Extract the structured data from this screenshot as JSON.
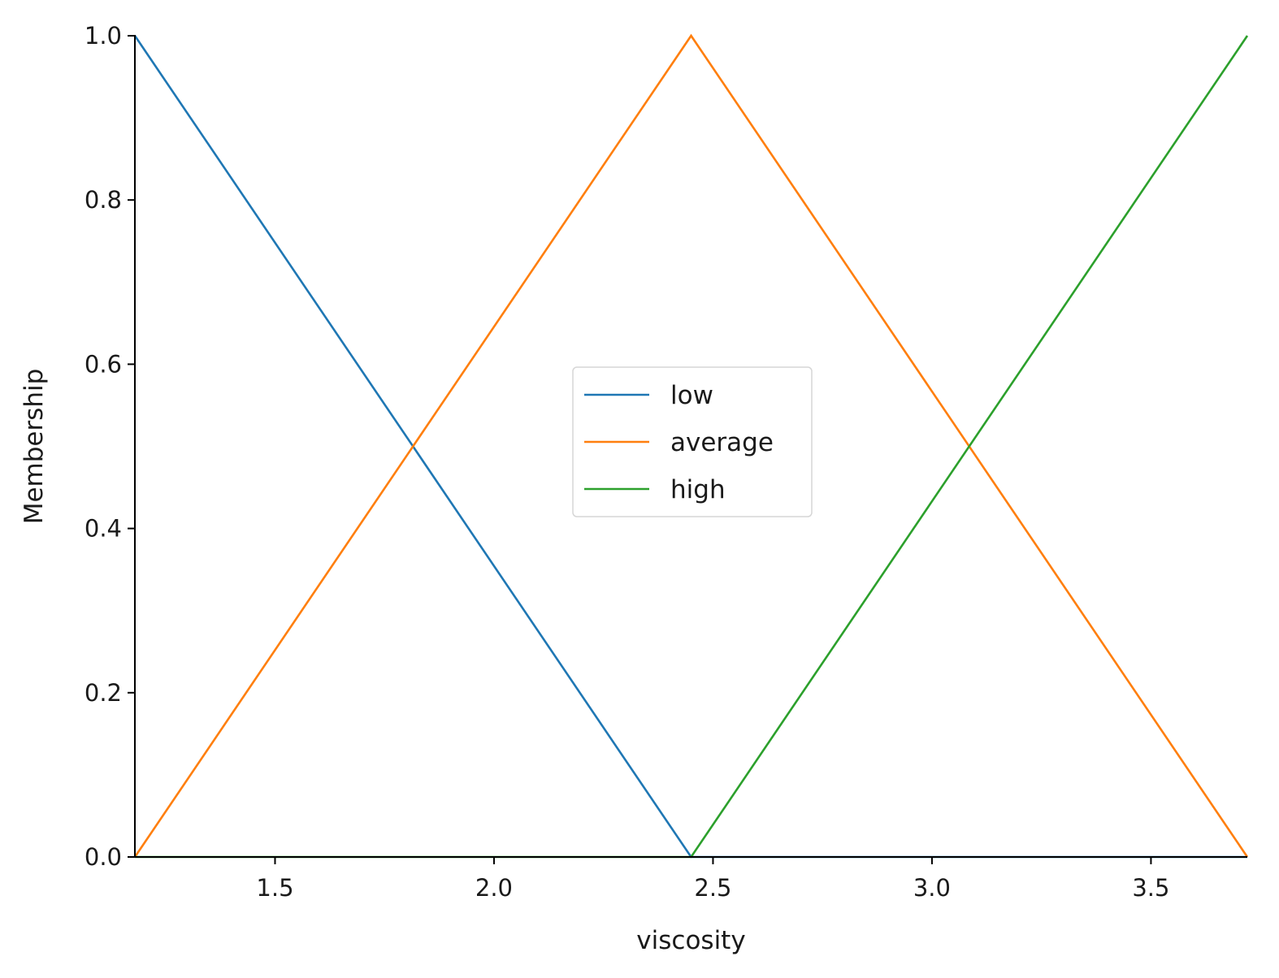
{
  "chart_data": {
    "type": "line",
    "title": "",
    "xlabel": "viscosity",
    "ylabel": "Membership",
    "xlim": [
      1.18,
      3.72
    ],
    "ylim": [
      0.0,
      1.0
    ],
    "x_ticks": [
      1.5,
      2.0,
      2.5,
      3.0,
      3.5
    ],
    "x_tick_labels": [
      "1.5",
      "2.0",
      "2.5",
      "3.0",
      "3.5"
    ],
    "y_ticks": [
      0.0,
      0.2,
      0.4,
      0.6,
      0.8,
      1.0
    ],
    "y_tick_labels": [
      "0.0",
      "0.2",
      "0.4",
      "0.6",
      "0.8",
      "1.0"
    ],
    "grid": false,
    "legend_position": "center",
    "series": [
      {
        "name": "low",
        "color": "#1f77b4",
        "x": [
          1.18,
          2.45,
          3.72
        ],
        "y": [
          1.0,
          0.0,
          0.0
        ]
      },
      {
        "name": "average",
        "color": "#ff7f0e",
        "x": [
          1.18,
          2.45,
          3.72
        ],
        "y": [
          0.0,
          1.0,
          0.0
        ]
      },
      {
        "name": "high",
        "color": "#2ca02c",
        "x": [
          1.18,
          2.45,
          3.72
        ],
        "y": [
          0.0,
          0.0,
          1.0
        ]
      }
    ]
  }
}
